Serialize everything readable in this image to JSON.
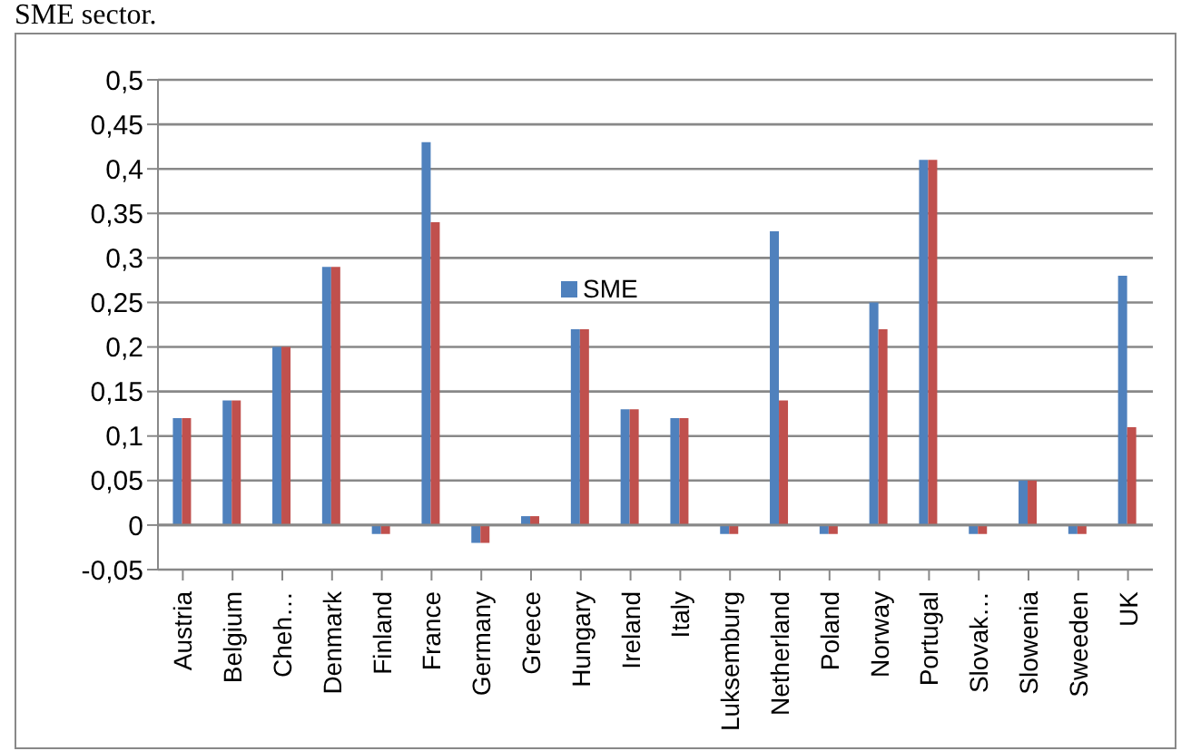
{
  "chart_data": {
    "type": "bar",
    "annotations": [
      "SME sector."
    ],
    "categories": [
      "Austria",
      "Belgium",
      "Cheh…",
      "Denmark",
      "Finland",
      "France",
      "Germany",
      "Greece",
      "Hungary",
      "Ireland",
      "Italy",
      "Luksemburg",
      "Netherland",
      "Poland",
      "Norway",
      "Portugal",
      "Slovak…",
      "Slowenia",
      "Sweeden",
      "UK"
    ],
    "series": [
      {
        "name": "SME",
        "color": "#4f81bd",
        "values": [
          0.12,
          0.14,
          0.2,
          0.29,
          -0.01,
          0.43,
          -0.02,
          0.01,
          0.22,
          0.13,
          0.12,
          -0.01,
          0.33,
          -0.01,
          0.25,
          0.41,
          -0.01,
          0.05,
          -0.01,
          0.28
        ]
      },
      {
        "color": "#c0504d",
        "values": [
          0.12,
          0.14,
          0.2,
          0.29,
          -0.01,
          0.34,
          -0.02,
          0.01,
          0.22,
          0.13,
          0.12,
          -0.01,
          0.14,
          -0.01,
          0.22,
          0.41,
          -0.01,
          0.05,
          -0.01,
          0.11
        ]
      }
    ],
    "ylim": [
      -0.05,
      0.5
    ],
    "yticks": [
      {
        "value": -0.05,
        "label": "-0,05"
      },
      {
        "value": 0,
        "label": "0"
      },
      {
        "value": 0.05,
        "label": "0,05"
      },
      {
        "value": 0.1,
        "label": "0,1"
      },
      {
        "value": 0.15,
        "label": "0,15"
      },
      {
        "value": 0.2,
        "label": "0,2"
      },
      {
        "value": 0.25,
        "label": "0,25"
      },
      {
        "value": 0.3,
        "label": "0,3"
      },
      {
        "value": 0.35,
        "label": "0,35"
      },
      {
        "value": 0.4,
        "label": "0,4"
      },
      {
        "value": 0.45,
        "label": "0,45"
      },
      {
        "value": 0.5,
        "label": "0,5"
      }
    ],
    "grid": "y",
    "legend": "center"
  }
}
